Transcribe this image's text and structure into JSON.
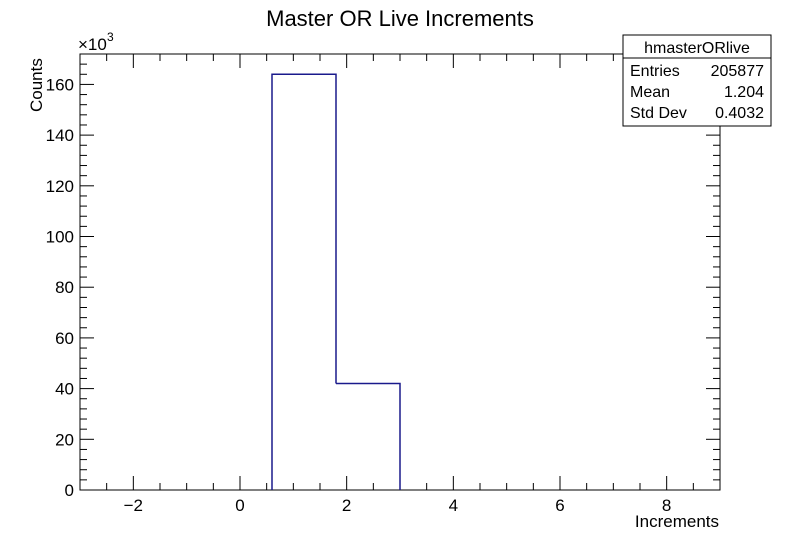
{
  "chart_data": {
    "type": "bar",
    "title": "Master OR Live Increments",
    "xlabel": "Increments",
    "ylabel": "Counts",
    "y_multiplier": "×10",
    "y_multiplier_exp": "3",
    "xlim": [
      -3,
      9
    ],
    "ylim": [
      0,
      172
    ],
    "x_ticks": [
      -2,
      0,
      2,
      4,
      6,
      8
    ],
    "x_tick_labels": [
      "−2",
      "0",
      "2",
      "4",
      "6",
      "8"
    ],
    "y_ticks": [
      0,
      20,
      40,
      60,
      80,
      100,
      120,
      140,
      160
    ],
    "y_tick_labels": [
      "0",
      "20",
      "40",
      "60",
      "80",
      "100",
      "120",
      "140",
      "160"
    ],
    "bins": [
      {
        "x_low": 0.6,
        "x_high": 1.8,
        "value": 164
      },
      {
        "x_low": 1.8,
        "x_high": 3.0,
        "value": 42
      }
    ],
    "line_color": "#1a1a8c",
    "grid": false,
    "legend": "none",
    "stats_box": {
      "name": "hmasterORlive",
      "rows": [
        {
          "label": "Entries",
          "value": "205877"
        },
        {
          "label": "Mean",
          "value": "1.204"
        },
        {
          "label": "Std Dev",
          "value": "0.4032"
        }
      ],
      "placement": "top-right"
    }
  }
}
